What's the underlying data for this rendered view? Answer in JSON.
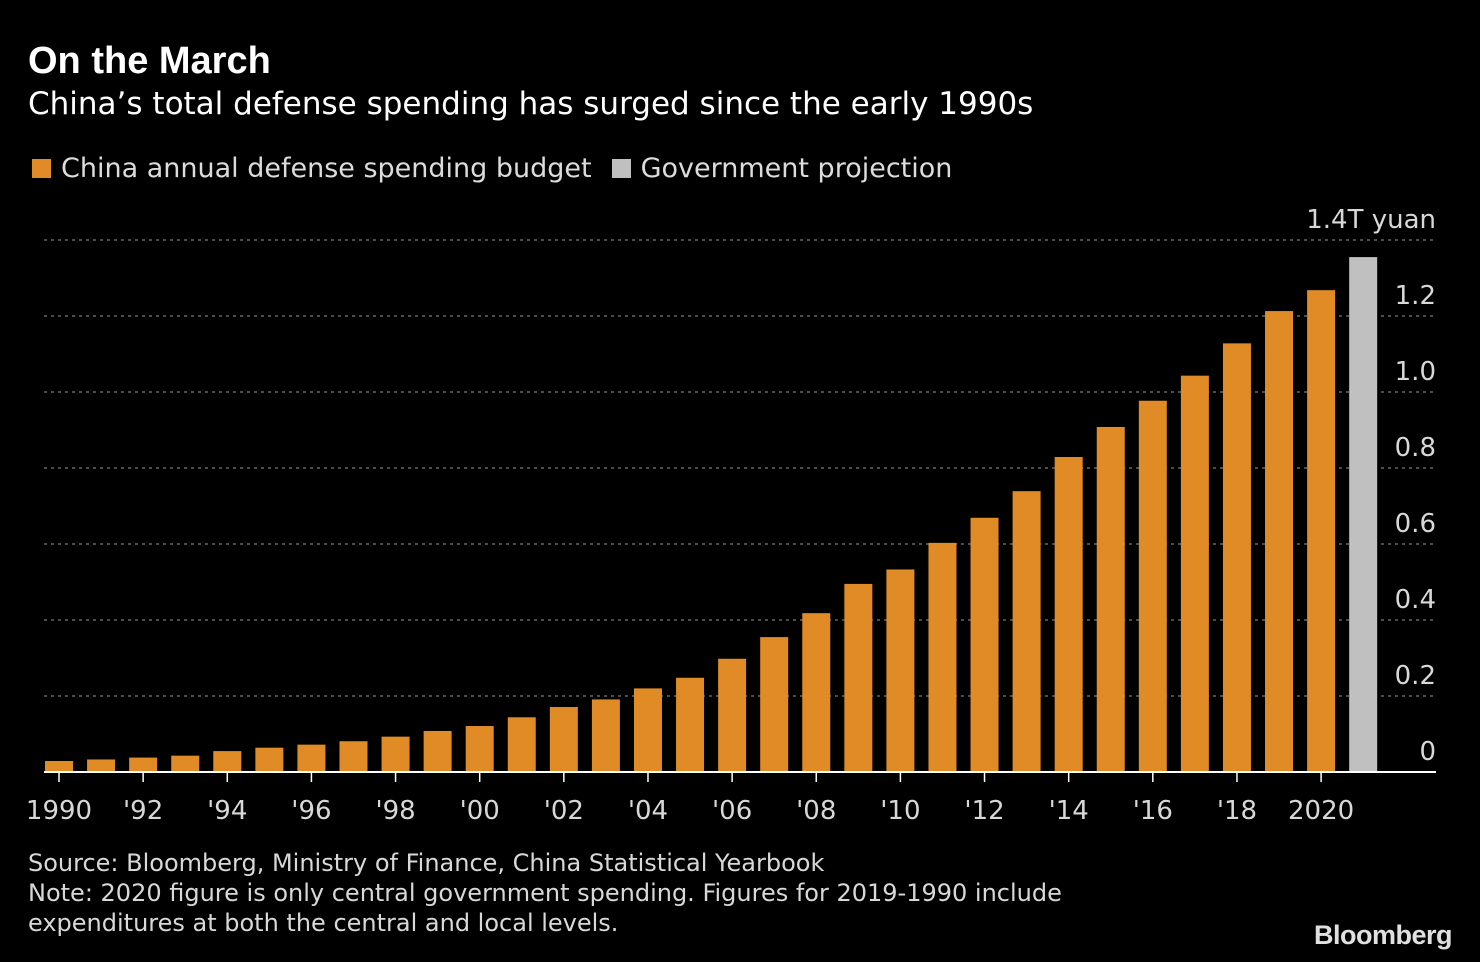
{
  "title": "On the March",
  "subtitle": "China’s total defense spending has surged since the early 1990s",
  "legend": [
    {
      "label": "China annual defense spending budget",
      "color": "#e08b25"
    },
    {
      "label": "Government projection",
      "color": "#c0c0c0"
    }
  ],
  "chart_data": {
    "type": "bar",
    "unit_label": "1.4T yuan",
    "yticks": [
      "0",
      "0.2",
      "0.4",
      "0.6",
      "0.8",
      "1.0",
      "1.2"
    ],
    "ylim": [
      0,
      1.4
    ],
    "grid": true,
    "y_axis_side": "right",
    "x": [
      1990,
      1991,
      1992,
      1993,
      1994,
      1995,
      1996,
      1997,
      1998,
      1999,
      2000,
      2001,
      2002,
      2003,
      2004,
      2005,
      2006,
      2007,
      2008,
      2009,
      2010,
      2011,
      2012,
      2013,
      2014,
      2015,
      2016,
      2017,
      2018,
      2019,
      2020,
      2021
    ],
    "xticks": [
      {
        "year": 1990,
        "label": "1990"
      },
      {
        "year": 1992,
        "label": "'92"
      },
      {
        "year": 1994,
        "label": "'94"
      },
      {
        "year": 1996,
        "label": "'96"
      },
      {
        "year": 1998,
        "label": "'98"
      },
      {
        "year": 2000,
        "label": "'00"
      },
      {
        "year": 2002,
        "label": "'02"
      },
      {
        "year": 2004,
        "label": "'04"
      },
      {
        "year": 2006,
        "label": "'06"
      },
      {
        "year": 2008,
        "label": "'08"
      },
      {
        "year": 2010,
        "label": "'10"
      },
      {
        "year": 2012,
        "label": "'12"
      },
      {
        "year": 2014,
        "label": "'14"
      },
      {
        "year": 2016,
        "label": "'16"
      },
      {
        "year": 2018,
        "label": "'18"
      },
      {
        "year": 2020,
        "label": "2020"
      }
    ],
    "series": [
      {
        "name": "China annual defense spending budget",
        "color": "#e08b25",
        "values": [
          0.029,
          0.033,
          0.038,
          0.043,
          0.055,
          0.064,
          0.072,
          0.081,
          0.093,
          0.108,
          0.121,
          0.144,
          0.171,
          0.191,
          0.22,
          0.248,
          0.298,
          0.355,
          0.418,
          0.495,
          0.533,
          0.603,
          0.669,
          0.739,
          0.829,
          0.908,
          0.977,
          1.043,
          1.128,
          1.213,
          1.268,
          null
        ]
      },
      {
        "name": "Government projection",
        "color": "#c0c0c0",
        "values": [
          null,
          null,
          null,
          null,
          null,
          null,
          null,
          null,
          null,
          null,
          null,
          null,
          null,
          null,
          null,
          null,
          null,
          null,
          null,
          null,
          null,
          null,
          null,
          null,
          null,
          null,
          null,
          null,
          null,
          null,
          null,
          1.355
        ]
      }
    ]
  },
  "footer": {
    "source": "Source: Bloomberg, Ministry of Finance, China Statistical Yearbook",
    "note_line1": "Note: 2020 figure is only central government spending. Figures for 2019-1990 include",
    "note_line2": "expenditures at both the central and local levels."
  },
  "brand": "Bloomberg"
}
